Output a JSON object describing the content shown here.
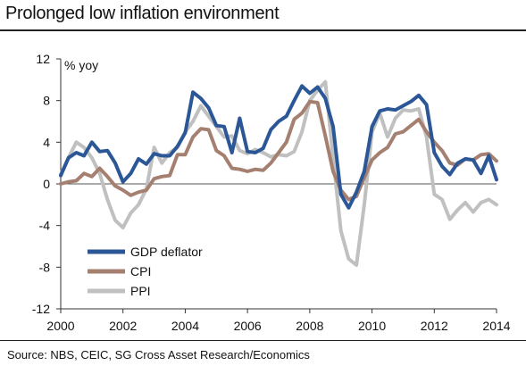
{
  "title": "Prolonged low inflation environment",
  "source": "Source: NBS, CEIC, SG Cross Asset Research/Economics",
  "chart_data": {
    "type": "line",
    "ylabel": "% yoy",
    "xlim": [
      2000,
      2014
    ],
    "ylim": [
      -12,
      12
    ],
    "x_ticks": [
      2000,
      2002,
      2004,
      2006,
      2008,
      2010,
      2012,
      2014
    ],
    "y_ticks": [
      -12,
      -8,
      -4,
      0,
      4,
      8,
      12
    ],
    "legend_position": "bottom-left",
    "series": [
      {
        "name": "GDP deflator",
        "color": "#2b5797",
        "x": [
          2000.0,
          2000.25,
          2000.5,
          2000.75,
          2001.0,
          2001.25,
          2001.5,
          2001.75,
          2002.0,
          2002.25,
          2002.5,
          2002.75,
          2003.0,
          2003.25,
          2003.5,
          2003.75,
          2004.0,
          2004.25,
          2004.5,
          2004.75,
          2005.0,
          2005.25,
          2005.5,
          2005.75,
          2006.0,
          2006.25,
          2006.5,
          2006.75,
          2007.0,
          2007.25,
          2007.5,
          2007.75,
          2008.0,
          2008.25,
          2008.5,
          2008.75,
          2009.0,
          2009.25,
          2009.5,
          2009.75,
          2010.0,
          2010.25,
          2010.5,
          2010.75,
          2011.0,
          2011.25,
          2011.5,
          2011.75,
          2012.0,
          2012.25,
          2012.5,
          2012.75,
          2013.0,
          2013.25,
          2013.5,
          2013.75,
          2014.0
        ],
        "values": [
          0.8,
          2.5,
          3.0,
          2.7,
          4.0,
          3.1,
          3.2,
          2.0,
          0.2,
          1.0,
          2.4,
          1.9,
          2.9,
          2.7,
          2.7,
          3.6,
          4.9,
          8.8,
          8.2,
          7.3,
          5.6,
          5.5,
          3.0,
          6.3,
          3.1,
          3.0,
          3.4,
          5.2,
          6.0,
          6.5,
          8.0,
          9.4,
          8.7,
          9.3,
          8.2,
          5.5,
          -1.0,
          -2.3,
          -0.8,
          1.2,
          5.5,
          7.0,
          7.2,
          7.1,
          7.5,
          7.9,
          8.5,
          7.6,
          3.0,
          1.7,
          0.9,
          2.0,
          2.4,
          2.3,
          1.0,
          2.7,
          0.4
        ]
      },
      {
        "name": "CPI",
        "color": "#a58070",
        "x": [
          2000.0,
          2000.25,
          2000.5,
          2000.75,
          2001.0,
          2001.25,
          2001.5,
          2001.75,
          2002.0,
          2002.25,
          2002.5,
          2002.75,
          2003.0,
          2003.25,
          2003.5,
          2003.75,
          2004.0,
          2004.25,
          2004.5,
          2004.75,
          2005.0,
          2005.25,
          2005.5,
          2005.75,
          2006.0,
          2006.25,
          2006.5,
          2006.75,
          2007.0,
          2007.25,
          2007.5,
          2007.75,
          2008.0,
          2008.25,
          2008.5,
          2008.75,
          2009.0,
          2009.25,
          2009.5,
          2009.75,
          2010.0,
          2010.25,
          2010.5,
          2010.75,
          2011.0,
          2011.25,
          2011.5,
          2011.75,
          2012.0,
          2012.25,
          2012.5,
          2012.75,
          2013.0,
          2013.25,
          2013.5,
          2013.75,
          2014.0
        ],
        "values": [
          0.0,
          0.2,
          0.3,
          1.0,
          0.7,
          1.5,
          0.7,
          -0.2,
          -0.6,
          -1.1,
          -0.8,
          -0.6,
          0.5,
          0.7,
          0.8,
          2.8,
          2.8,
          4.5,
          5.3,
          5.2,
          3.2,
          2.7,
          1.5,
          1.4,
          1.2,
          1.4,
          1.3,
          2.0,
          3.0,
          4.0,
          6.2,
          6.8,
          7.9,
          7.8,
          4.6,
          1.2,
          -0.6,
          -1.5,
          -1.2,
          0.6,
          2.3,
          3.0,
          3.5,
          4.8,
          5.0,
          5.6,
          6.2,
          5.0,
          4.0,
          3.2,
          2.0,
          1.8,
          2.4,
          2.3,
          2.8,
          2.9,
          2.2
        ]
      },
      {
        "name": "PPI",
        "color": "#c0c0c0",
        "x": [
          2000.0,
          2000.25,
          2000.5,
          2000.75,
          2001.0,
          2001.25,
          2001.5,
          2001.75,
          2002.0,
          2002.25,
          2002.5,
          2002.75,
          2003.0,
          2003.25,
          2003.5,
          2003.75,
          2004.0,
          2004.25,
          2004.5,
          2004.75,
          2005.0,
          2005.25,
          2005.5,
          2005.75,
          2006.0,
          2006.25,
          2006.5,
          2006.75,
          2007.0,
          2007.25,
          2007.5,
          2007.75,
          2008.0,
          2008.25,
          2008.5,
          2008.75,
          2009.0,
          2009.25,
          2009.5,
          2009.75,
          2010.0,
          2010.25,
          2010.5,
          2010.75,
          2011.0,
          2011.25,
          2011.5,
          2011.75,
          2012.0,
          2012.25,
          2012.5,
          2012.75,
          2013.0,
          2013.25,
          2013.5,
          2013.75,
          2014.0
        ],
        "values": [
          0.9,
          2.5,
          4.0,
          3.5,
          2.5,
          1.0,
          -1.5,
          -3.5,
          -4.2,
          -2.8,
          -2.0,
          -0.5,
          3.5,
          2.0,
          3.0,
          3.5,
          5.0,
          6.0,
          7.5,
          6.5,
          5.5,
          4.5,
          4.6,
          3.2,
          2.9,
          3.3,
          3.0,
          2.6,
          2.8,
          2.7,
          3.1,
          5.0,
          8.0,
          9.0,
          9.8,
          2.5,
          -4.5,
          -7.2,
          -7.8,
          -2.0,
          5.0,
          6.8,
          4.5,
          6.3,
          7.1,
          7.0,
          7.2,
          4.5,
          -1.0,
          -1.5,
          -3.4,
          -2.5,
          -1.8,
          -2.7,
          -1.8,
          -1.5,
          -2.0
        ]
      }
    ]
  }
}
